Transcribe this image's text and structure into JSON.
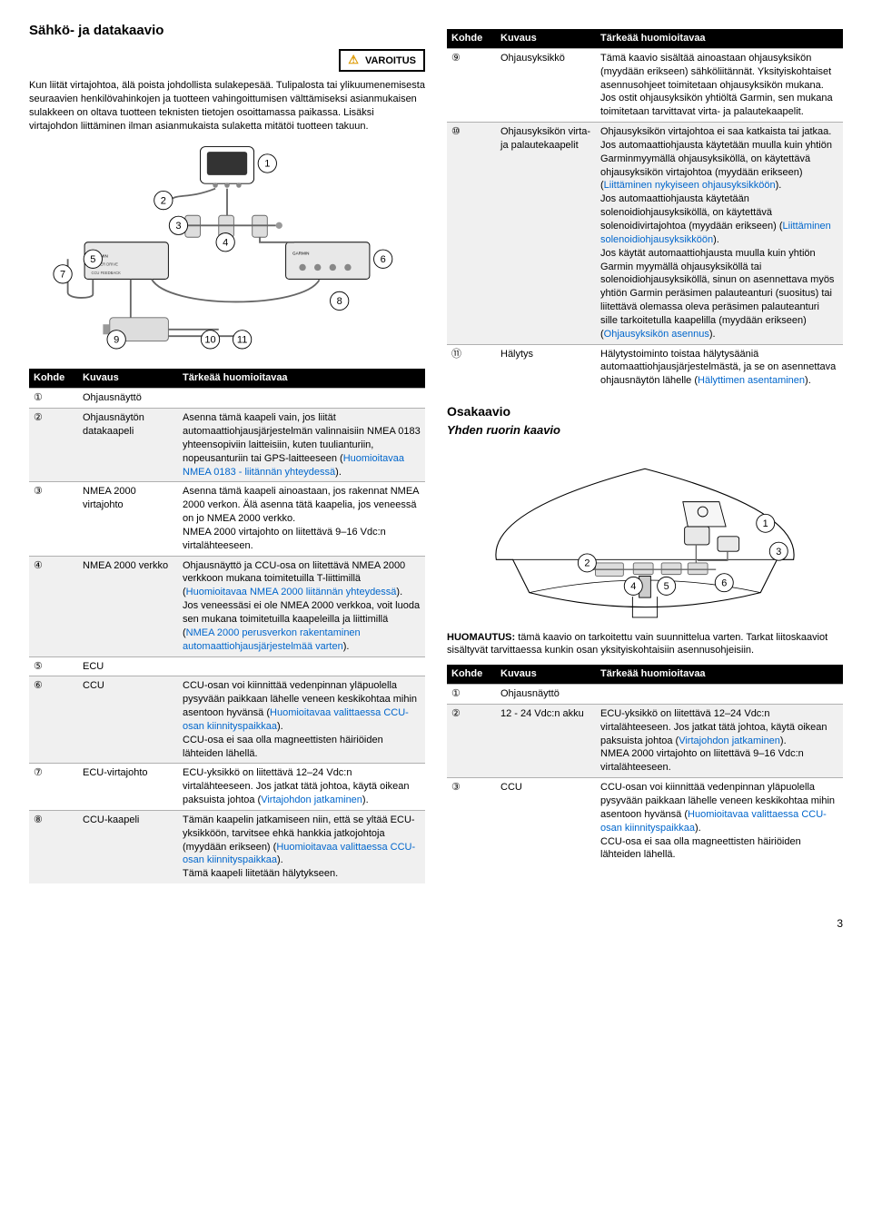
{
  "page_number": "3",
  "left": {
    "title": "Sähkö- ja datakaavio",
    "warn_label": "VAROITUS",
    "p1": "Kun liität virtajohtoa, älä poista johdollista sulakepesää. Tulipalosta tai ylikuumenemisesta seuraavien henkilövahinkojen ja tuotteen vahingoittumisen välttämiseksi asianmukaisen sulakkeen on oltava tuotteen teknisten tietojen osoittamassa paikassa. Lisäksi virtajohdon liittäminen ilman asianmukaista sulaketta mitätöi tuotteen takuun.",
    "table_headers": {
      "kohde": "Kohde",
      "kuvaus": "Kuvaus",
      "tarkea": "Tärkeää huomioitavaa"
    },
    "rows": [
      {
        "k": "①",
        "kv": "Ohjausnäyttö",
        "t": ""
      },
      {
        "k": "②",
        "kv": "Ohjausnäytön datakaapeli",
        "t": "Asenna tämä kaapeli vain, jos liität automaattiohjausjärjestelmän valinnaisiin NMEA 0183 yhteensopiviin laitteisiin, kuten tuulianturiin, nopeusanturiin tai GPS-laitteeseen (<span class='link'>Huomioitavaa NMEA 0183 - liitännän yhteydessä</span>)."
      },
      {
        "k": "③",
        "kv": "NMEA 2000 virtajohto",
        "t": "Asenna tämä kaapeli ainoastaan, jos rakennat NMEA 2000 verkon. Älä asenna tätä kaapelia, jos veneessä on jo NMEA 2000 verkko.<br>NMEA 2000 virtajohto on liitettävä 9–16 Vdc:n virtalähteeseen."
      },
      {
        "k": "④",
        "kv": "NMEA 2000 verkko",
        "t": "Ohjausnäyttö ja CCU-osa on liitettävä NMEA 2000 verkkoon mukana toimitetuilla T-liittimillä (<span class='link'>Huomioitavaa NMEA 2000 liitännän yhteydessä</span>).<br>Jos veneessäsi ei ole NMEA 2000 verkkoa, voit luoda sen mukana toimitetuilla kaapeleilla ja liittimillä (<span class='link'>NMEA 2000 perusverkon rakentaminen automaattiohjausjärjestelmää varten</span>)."
      },
      {
        "k": "⑤",
        "kv": "ECU",
        "t": ""
      },
      {
        "k": "⑥",
        "kv": "CCU",
        "t": "CCU-osan voi kiinnittää vedenpinnan yläpuolella pysyvään paikkaan lähelle veneen keskikohtaa mihin asentoon hyvänsä (<span class='link'>Huomioitavaa valittaessa CCU-osan kiinnityspaikkaa</span>).<br>CCU-osa ei saa olla magneettisten häiriöiden lähteiden lähellä."
      },
      {
        "k": "⑦",
        "kv": "ECU-virtajohto",
        "t": "ECU-yksikkö on liitettävä 12–24 Vdc:n virtalähteeseen. Jos jatkat tätä johtoa, käytä oikean paksuista johtoa (<span class='link'>Virtajohdon jatkaminen</span>)."
      },
      {
        "k": "⑧",
        "kv": "CCU-kaapeli",
        "t": "Tämän kaapelin jatkamiseen niin, että se yltää ECU-yksikköön, tarvitsee ehkä hankkia jatkojohtoja (myydään erikseen) (<span class='link'>Huomioitavaa valittaessa CCU-osan kiinnityspaikkaa</span>).<br>Tämä kaapeli liitetään hälytykseen."
      }
    ]
  },
  "right": {
    "table_headers": {
      "kohde": "Kohde",
      "kuvaus": "Kuvaus",
      "tarkea": "Tärkeää huomioitavaa"
    },
    "rows": [
      {
        "k": "⑨",
        "kv": "Ohjausyksikkö",
        "t": "Tämä kaavio sisältää ainoastaan ohjausyksikön (myydään erikseen) sähköliitännät. Yksityiskohtaiset asennusohjeet toimitetaan ohjausyksikön mukana.<br>Jos ostit ohjausyksikön yhtiöltä Garmin, sen mukana toimitetaan tarvittavat virta- ja palautekaapelit."
      },
      {
        "k": "⑩",
        "kv": "Ohjausyksikön virta- ja palautekaapelit",
        "t": "Ohjausyksikön virtajohtoa ei saa katkaista tai jatkaa. Jos automaattiohjausta käytetään muulla kuin yhtiön Garminmyymällä ohjausyksiköllä, on käytettävä ohjausyksikön virtajohtoa (myydään erikseen) (<span class='link'>Liittäminen nykyiseen ohjausyksikköön</span>).<br>Jos automaattiohjausta käytetään solenoidiohjausyksiköllä, on käytettävä solenoidivirtajohtoa (myydään erikseen) (<span class='link'>Liittäminen solenoidiohjausyksikköön</span>).<br>Jos käytät automaattiohjausta muulla kuin yhtiön Garmin myymällä ohjausyksiköllä tai solenoidiohjausyksiköllä, sinun on asennettava myös yhtiön Garmin peräsimen palauteanturi (suositus) tai liitettävä olemassa oleva peräsimen palauteanturi sille tarkoitetulla kaapelilla (myydään erikseen) (<span class='link'>Ohjausyksikön asennus</span>)."
      },
      {
        "k": "⑪",
        "kv": "Hälytys",
        "t": "Hälytystoiminto toistaa hälytysääniä automaattiohjausjärjestelmästä, ja se on asennettava ohjausnäytön lähelle (<span class='link'>Hälyttimen asentaminen</span>)."
      }
    ],
    "sub_title": "Osakaavio",
    "sub_sub": "Yhden ruorin kaavio",
    "note": "<span class='note-bold'>HUOMAUTUS:</span> tämä kaavio on tarkoitettu vain suunnittelua varten. Tarkat liitoskaaviot sisältyvät tarvittaessa kunkin osan yksityiskohtaisiin asennusohjeisiin.",
    "rows2": [
      {
        "k": "①",
        "kv": "Ohjausnäyttö",
        "t": ""
      },
      {
        "k": "②",
        "kv": "12 - 24 Vdc:n akku",
        "t": "ECU-yksikkö on liitettävä 12–24 Vdc:n virtalähteeseen. Jos jatkat tätä johtoa, käytä oikean paksuista johtoa (<span class='link'>Virtajohdon jatkaminen</span>).<br>NMEA 2000 virtajohto on liitettävä 9–16 Vdc:n virtalähteeseen."
      },
      {
        "k": "③",
        "kv": "CCU",
        "t": "CCU-osan voi kiinnittää vedenpinnan yläpuolella pysyvään paikkaan lähelle veneen keskikohtaa mihin asentoon hyvänsä (<span class='link'>Huomioitavaa valittaessa CCU-osan kiinnityspaikkaa</span>).<br>CCU-osa ei saa olla magneettisten häiriöiden lähteiden lähellä."
      }
    ]
  },
  "diagram1": {
    "labels": [
      "1",
      "2",
      "3",
      "4",
      "5",
      "6",
      "7",
      "8",
      "9",
      "10",
      "11"
    ]
  },
  "diagram2": {
    "labels": [
      "1",
      "2",
      "3",
      "4",
      "5",
      "6"
    ]
  }
}
